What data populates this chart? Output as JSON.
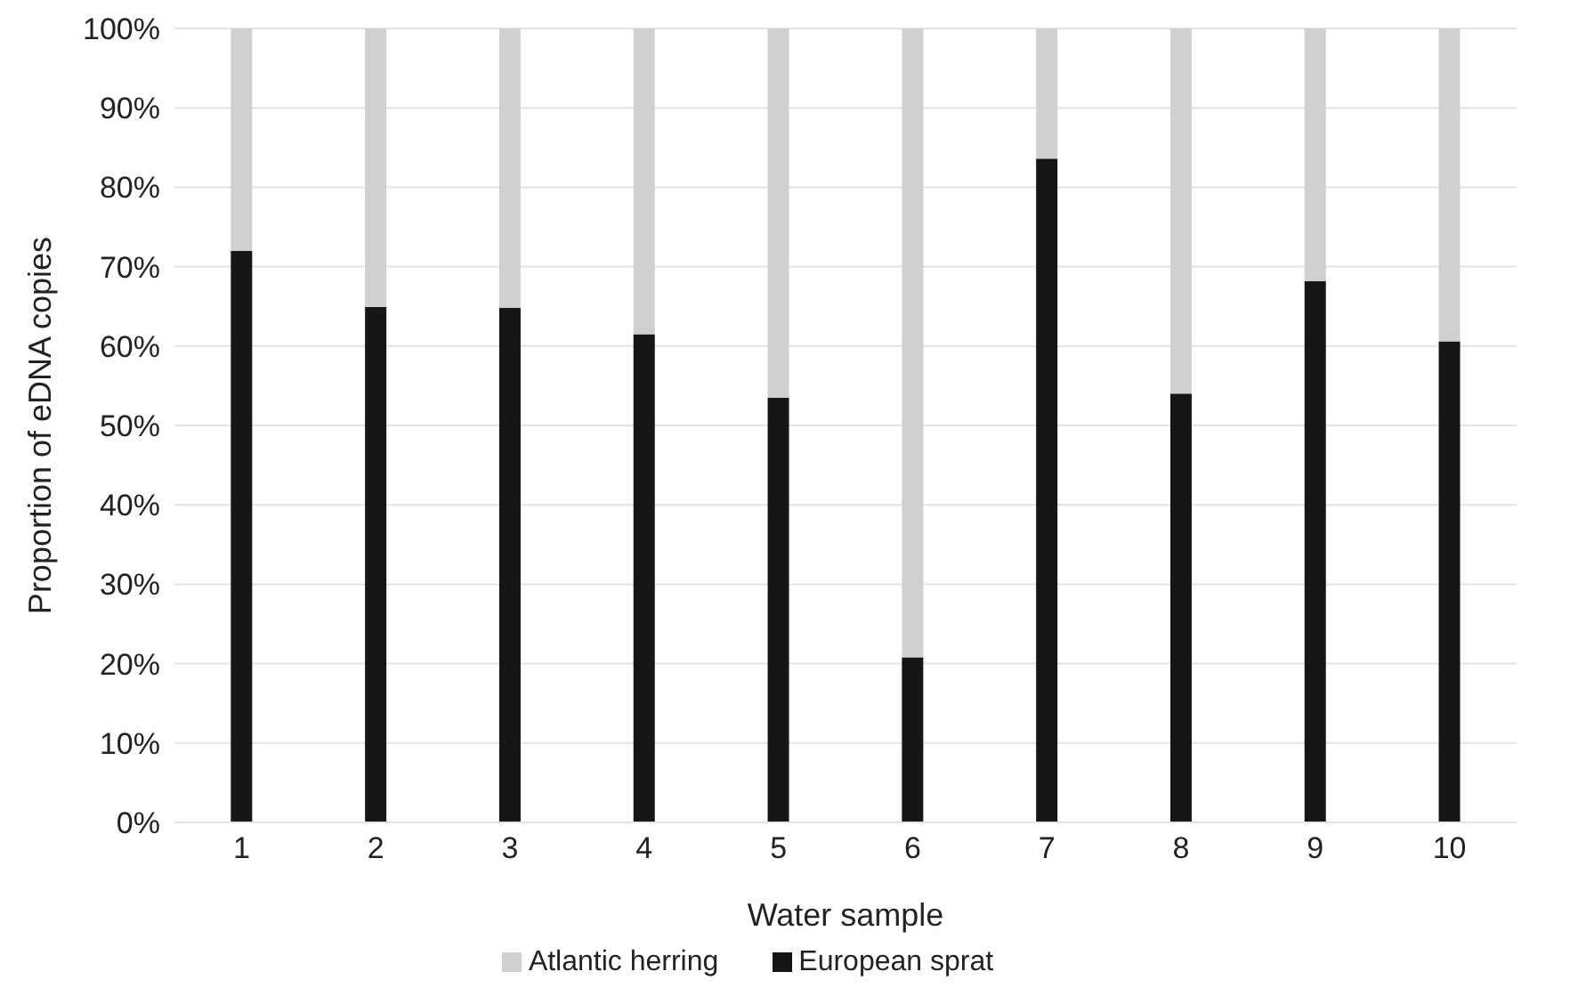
{
  "chart_data": {
    "type": "bar",
    "stacked": true,
    "xlabel": "Water sample",
    "ylabel": "Proportion of  eDNA copies",
    "categories": [
      "1",
      "2",
      "3",
      "4",
      "5",
      "6",
      "7",
      "8",
      "9",
      "10"
    ],
    "series": [
      {
        "name": "European sprat",
        "color": "#161616",
        "values": [
          72.0,
          64.9,
          64.8,
          61.5,
          53.5,
          20.8,
          83.6,
          54.0,
          68.2,
          60.6
        ]
      },
      {
        "name": "Atlantic herring",
        "color": "#cfd0cf",
        "values": [
          28.0,
          35.1,
          35.2,
          38.5,
          46.5,
          79.2,
          16.4,
          46.0,
          31.8,
          39.4
        ]
      }
    ],
    "ylim": [
      0,
      100
    ],
    "yticks": [
      {
        "value": 0,
        "label": "0%"
      },
      {
        "value": 10,
        "label": "10%"
      },
      {
        "value": 20,
        "label": "20%"
      },
      {
        "value": 30,
        "label": "30%"
      },
      {
        "value": 40,
        "label": "40%"
      },
      {
        "value": 50,
        "label": "50%"
      },
      {
        "value": 60,
        "label": "60%"
      },
      {
        "value": 70,
        "label": "70%"
      },
      {
        "value": 80,
        "label": "80%"
      },
      {
        "value": 90,
        "label": "90%"
      },
      {
        "value": 100,
        "label": "100%"
      }
    ],
    "grid": "y",
    "legend": "bottom"
  }
}
